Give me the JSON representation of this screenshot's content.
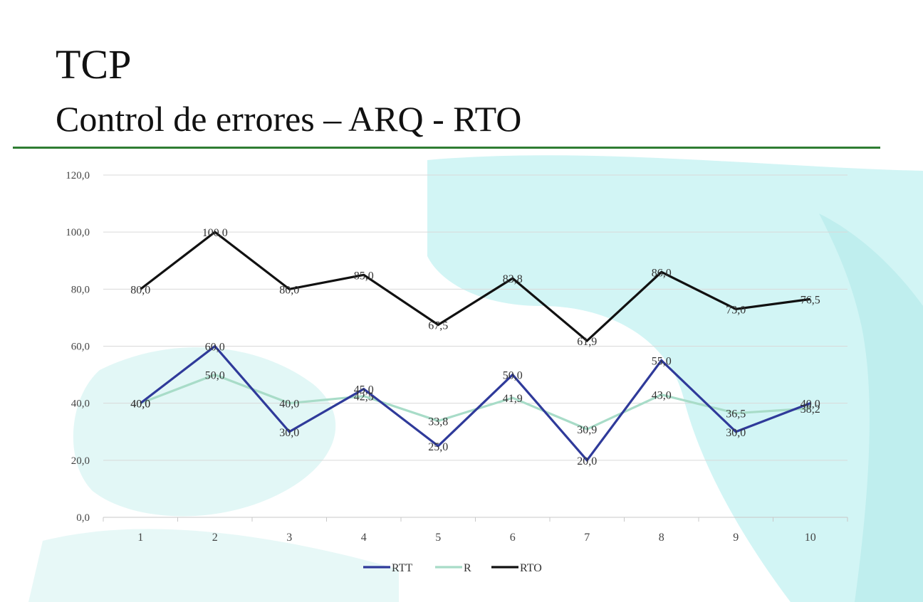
{
  "slide": {
    "title": "TCP",
    "subtitle": "Control de errores – ARQ - RTO"
  },
  "colors": {
    "rule": "#2e7d32",
    "rtt": "#2f3a9a",
    "r": "#a8dcc8",
    "rto": "#111111",
    "gridline": "#d9d9d9",
    "decoration": "#d2f5f5"
  },
  "chart_data": {
    "type": "line",
    "x": [
      1,
      2,
      3,
      4,
      5,
      6,
      7,
      8,
      9,
      10
    ],
    "ylim": [
      0,
      120
    ],
    "yticks": [
      "0,0",
      "20,0",
      "40,0",
      "60,0",
      "80,0",
      "100,0",
      "120,0"
    ],
    "grid": true,
    "legend_position": "bottom",
    "series": [
      {
        "name": "RTT",
        "values": [
          40,
          60,
          30,
          45,
          25,
          50,
          20,
          55,
          30,
          40
        ],
        "labels": [
          "40,0",
          "60,0",
          "30,0",
          "45,0",
          "25,0",
          "50,0",
          "20,0",
          "55,0",
          "30,0",
          "40,0"
        ]
      },
      {
        "name": "R",
        "values": [
          40,
          50,
          40,
          42.5,
          33.8,
          41.9,
          30.9,
          43,
          36.5,
          38.2
        ],
        "labels": [
          "40,0",
          "50,0",
          "40,0",
          "42,5",
          "33,8",
          "41,9",
          "30,9",
          "43,0",
          "36,5",
          "38,2"
        ]
      },
      {
        "name": "RTO",
        "values": [
          80,
          100,
          80,
          85,
          67.5,
          83.8,
          61.9,
          86,
          73,
          76.5
        ],
        "labels": [
          "80,0",
          "100,0",
          "80,0",
          "85,0",
          "67,5",
          "83,8",
          "61,9",
          "86,0",
          "73,0",
          "76,5"
        ]
      }
    ]
  }
}
